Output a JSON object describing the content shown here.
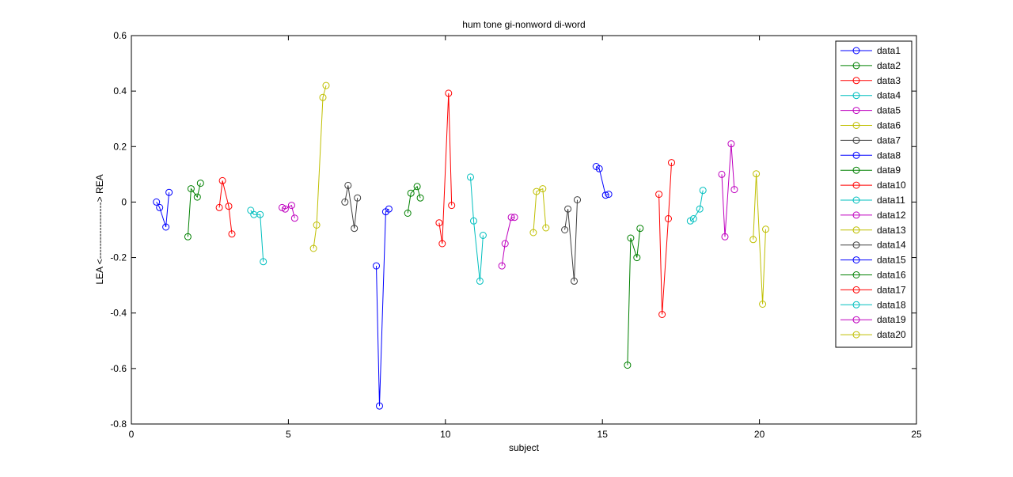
{
  "chart_data": {
    "type": "line",
    "title": "hum tone gi-nonword di-word",
    "xlabel": "subject",
    "ylabel": "LEA <------------------> REA",
    "xlim": [
      0,
      25
    ],
    "ylim": [
      -0.8,
      0.6
    ],
    "xticks": [
      "0",
      "5",
      "10",
      "15",
      "20",
      "25"
    ],
    "yticks": [
      "-0.8",
      "-0.6",
      "-0.4",
      "-0.2",
      "0",
      "0.2",
      "0.4",
      "0.6"
    ],
    "grid": false,
    "legend_position": "top-right",
    "marker": "circle",
    "series": [
      {
        "name": "data1",
        "color": "#0000ff",
        "x": [
          0.8,
          0.9,
          1.1,
          1.2
        ],
        "y": [
          0.0,
          -0.02,
          -0.09,
          0.035
        ]
      },
      {
        "name": "data2",
        "color": "#008000",
        "x": [
          1.8,
          1.9,
          2.1,
          2.2
        ],
        "y": [
          -0.125,
          0.048,
          0.018,
          0.068
        ]
      },
      {
        "name": "data3",
        "color": "#ff0000",
        "x": [
          2.8,
          2.9,
          3.1,
          3.2
        ],
        "y": [
          -0.02,
          0.077,
          -0.015,
          -0.115
        ]
      },
      {
        "name": "data4",
        "color": "#00bfbf",
        "x": [
          3.8,
          3.9,
          4.1,
          4.2
        ],
        "y": [
          -0.03,
          -0.045,
          -0.045,
          -0.215
        ]
      },
      {
        "name": "data5",
        "color": "#bf00bf",
        "x": [
          4.8,
          4.9,
          5.1,
          5.2
        ],
        "y": [
          -0.02,
          -0.025,
          -0.012,
          -0.058
        ]
      },
      {
        "name": "data6",
        "color": "#bfbf00",
        "x": [
          5.8,
          5.9,
          6.1,
          6.2
        ],
        "y": [
          -0.167,
          -0.083,
          0.377,
          0.42
        ]
      },
      {
        "name": "data7",
        "color": "#404040",
        "x": [
          6.8,
          6.9,
          7.1,
          7.2
        ],
        "y": [
          0.0,
          0.06,
          -0.095,
          0.015
        ]
      },
      {
        "name": "data8",
        "color": "#0000ff",
        "x": [
          7.8,
          7.9,
          8.1,
          8.2
        ],
        "y": [
          -0.23,
          -0.735,
          -0.035,
          -0.025
        ]
      },
      {
        "name": "data9",
        "color": "#008000",
        "x": [
          8.8,
          8.9,
          9.1,
          9.2
        ],
        "y": [
          -0.04,
          0.032,
          0.056,
          0.015
        ]
      },
      {
        "name": "data10",
        "color": "#ff0000",
        "x": [
          9.8,
          9.9,
          10.1,
          10.2
        ],
        "y": [
          -0.075,
          -0.15,
          0.392,
          -0.012
        ]
      },
      {
        "name": "data11",
        "color": "#00bfbf",
        "x": [
          10.8,
          10.9,
          11.1,
          11.2
        ],
        "y": [
          0.09,
          -0.068,
          -0.285,
          -0.12
        ]
      },
      {
        "name": "data12",
        "color": "#bf00bf",
        "x": [
          11.8,
          11.9,
          12.1,
          12.2
        ],
        "y": [
          -0.23,
          -0.15,
          -0.055,
          -0.055
        ]
      },
      {
        "name": "data13",
        "color": "#bfbf00",
        "x": [
          12.8,
          12.9,
          13.1,
          13.2
        ],
        "y": [
          -0.11,
          0.038,
          0.048,
          -0.093
        ]
      },
      {
        "name": "data14",
        "color": "#404040",
        "x": [
          13.8,
          13.9,
          14.1,
          14.2
        ],
        "y": [
          -0.1,
          -0.025,
          -0.285,
          0.008
        ]
      },
      {
        "name": "data15",
        "color": "#0000ff",
        "x": [
          14.8,
          14.9,
          15.1,
          15.2
        ],
        "y": [
          0.128,
          0.12,
          0.025,
          0.028
        ]
      },
      {
        "name": "data16",
        "color": "#008000",
        "x": [
          15.8,
          15.9,
          16.1,
          16.2
        ],
        "y": [
          -0.588,
          -0.13,
          -0.2,
          -0.095
        ]
      },
      {
        "name": "data17",
        "color": "#ff0000",
        "x": [
          16.8,
          16.9,
          17.1,
          17.2
        ],
        "y": [
          0.028,
          -0.405,
          -0.06,
          0.142
        ]
      },
      {
        "name": "data18",
        "color": "#00bfbf",
        "x": [
          17.8,
          17.9,
          18.1,
          18.2
        ],
        "y": [
          -0.068,
          -0.06,
          -0.025,
          0.042
        ]
      },
      {
        "name": "data19",
        "color": "#bf00bf",
        "x": [
          18.8,
          18.9,
          19.1,
          19.2
        ],
        "y": [
          0.1,
          -0.125,
          0.21,
          0.045
        ]
      },
      {
        "name": "data20",
        "color": "#bfbf00",
        "x": [
          19.8,
          19.9,
          20.1,
          20.2
        ],
        "y": [
          -0.135,
          0.102,
          -0.368,
          -0.098
        ]
      }
    ]
  }
}
